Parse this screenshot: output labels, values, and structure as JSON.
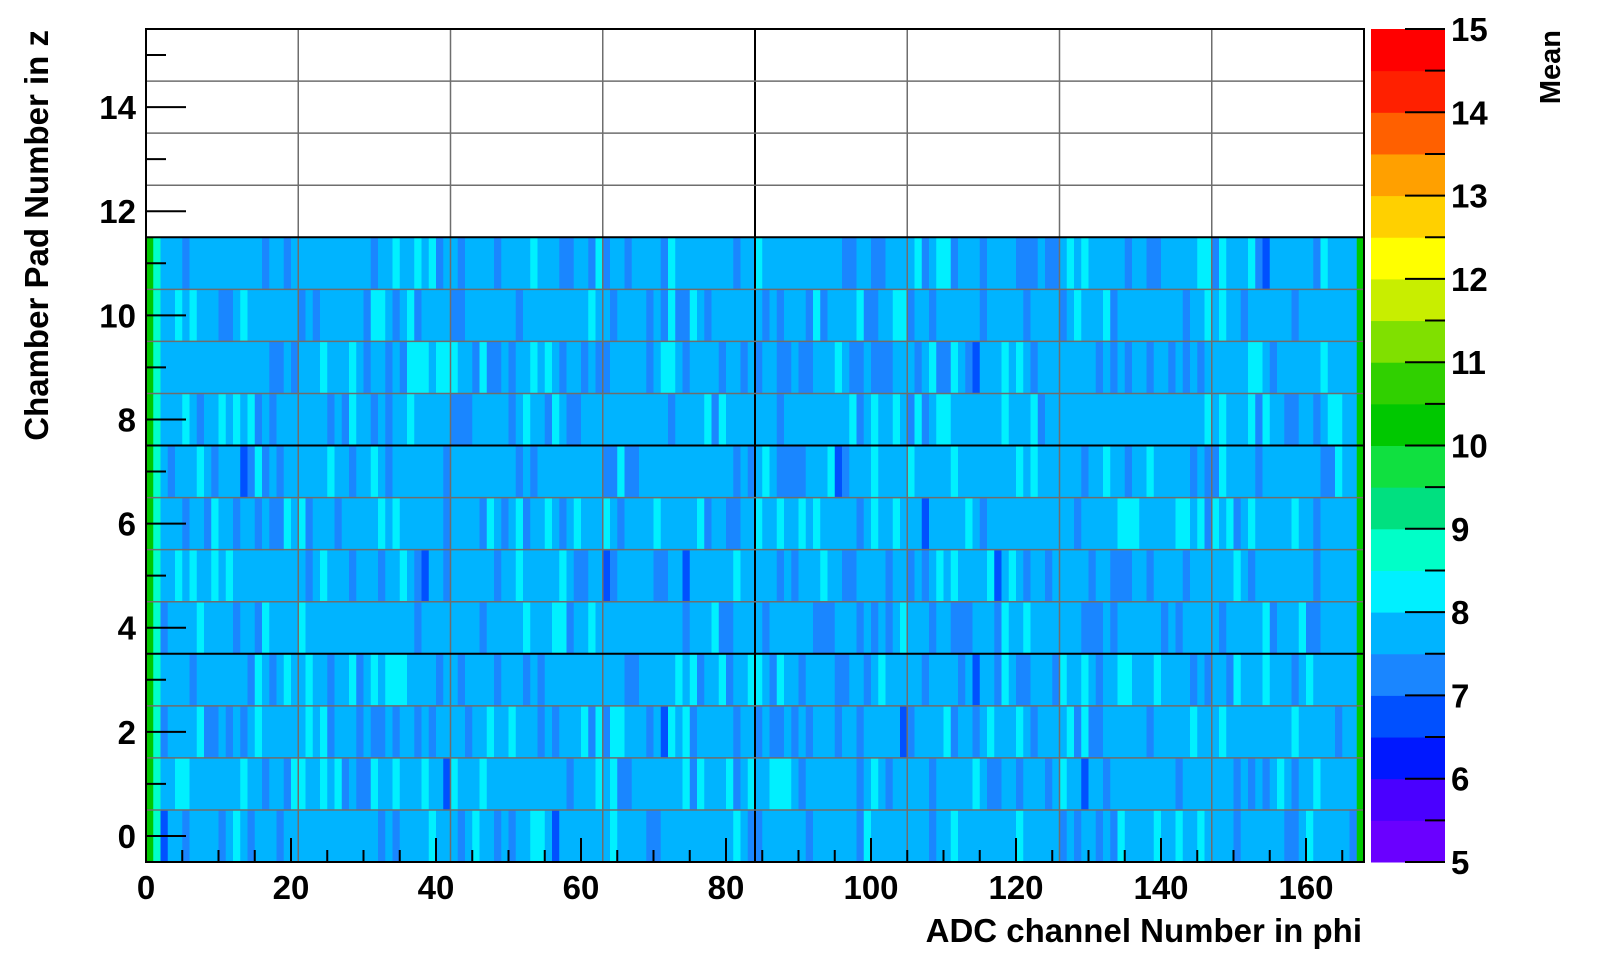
{
  "chart_data": {
    "type": "heatmap",
    "title": "",
    "xlabel": "ADC channel Number in phi",
    "ylabel": "Chamber Pad Number in z",
    "zlabel": "Mean",
    "xlim": [
      0,
      168
    ],
    "ylim": [
      -0.5,
      15.5
    ],
    "zlim": [
      5,
      15
    ],
    "x_ticks": [
      0,
      20,
      40,
      60,
      80,
      100,
      120,
      140,
      160
    ],
    "y_ticks": [
      0,
      2,
      4,
      6,
      8,
      10,
      12,
      14
    ],
    "z_ticks": [
      5,
      6,
      7,
      8,
      9,
      10,
      11,
      12,
      13,
      14,
      15
    ],
    "x_bins": 168,
    "y_bins_filled": 12,
    "x_divisions": [
      0,
      21,
      42,
      63,
      84,
      105,
      126,
      147,
      168
    ],
    "y_divisions": [
      -0.5,
      0.5,
      1.5,
      2.5,
      3.5,
      4.5,
      5.5,
      6.5,
      7.5,
      8.5,
      9.5,
      10.5,
      11.5,
      12.5,
      13.5,
      14.5,
      15.5
    ],
    "grid": true,
    "typical_value": 7.6,
    "value_range": [
      6.8,
      10.2
    ],
    "palette": [
      "#6a00ff",
      "#4a00ff",
      "#0018ff",
      "#0050ff",
      "#1a86ff",
      "#00b4ff",
      "#00f0ff",
      "#00ffc8",
      "#00e080",
      "#10e040",
      "#00c800",
      "#30d000",
      "#80e000",
      "#c8ee00",
      "#ffff00",
      "#ffd000",
      "#ffa000",
      "#ff6000",
      "#ff2000",
      "#ff0000"
    ]
  }
}
